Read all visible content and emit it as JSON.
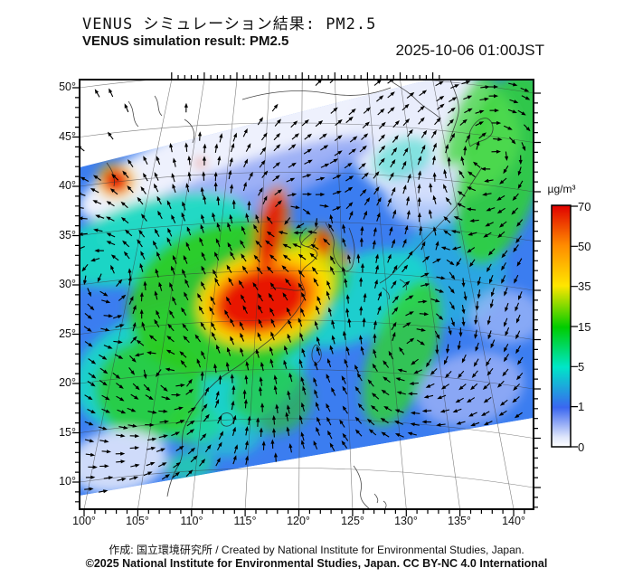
{
  "header": {
    "title_ja": "VENUS シミュレーション結果: PM2.5",
    "title_en": "VENUS simulation result: PM2.5",
    "timestamp": "2025-10-06 01:00JST"
  },
  "map_axes": {
    "lat_labels": [
      "50°",
      "45°",
      "40°",
      "35°",
      "30°",
      "25°",
      "20°",
      "15°",
      "10°"
    ],
    "lon_labels": [
      "100°",
      "105°",
      "110°",
      "115°",
      "120°",
      "125°",
      "130°",
      "135°",
      "140°"
    ]
  },
  "colorbar": {
    "unit": "µg/m³",
    "tick_labels": [
      "70",
      "50",
      "35",
      "15",
      "5",
      "1",
      "0"
    ],
    "level_colors": [
      "#e00000",
      "#ff8c00",
      "#ffe600",
      "#00cc00",
      "#00e6c8",
      "#3a66f0",
      "#ffffff"
    ]
  },
  "footer": {
    "credit_line": "作成: 国立環境研究所 / Created by National Institute for Environmental Studies, Japan.",
    "license_line": "©2025 National Institute for Environmental Studies, Japan. CC BY-NC 4.0 International"
  },
  "chart_data": {
    "type": "heatmap",
    "variable": "PM2.5 surface concentration",
    "unit": "µg/m³",
    "colorbar_levels": [
      0,
      1,
      5,
      15,
      35,
      50,
      70
    ],
    "lat_range_deg": [
      10,
      50
    ],
    "lon_range_deg": [
      100,
      140
    ],
    "overlay": "wind vector arrows",
    "notes": "High PM2.5 (red, >50) over eastern-central China around 26-32N 110-120E, red spot near 40N 104E and near west Korea 37N; green/cyan (5-35) over southern China and bands toward Japan; blue (1-5) over oceans; near-zero white over Mongolia/NE Asia."
  }
}
